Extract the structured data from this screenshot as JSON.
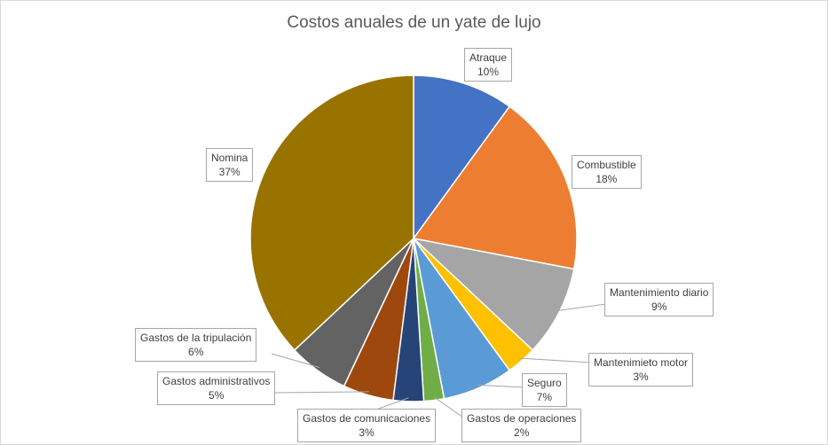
{
  "chart_data": {
    "type": "pie",
    "title": "Costos anuales de un yate de lujo",
    "slices": [
      {
        "name": "Atraque",
        "value": 10,
        "label": "10%",
        "color": "#4472C4"
      },
      {
        "name": "Combustible",
        "value": 18,
        "label": "18%",
        "color": "#ED7D31"
      },
      {
        "name": "Mantenimiento diario",
        "value": 9,
        "label": "9%",
        "color": "#A5A5A5"
      },
      {
        "name": "Mantenimieto motor",
        "value": 3,
        "label": "3%",
        "color": "#FFC000"
      },
      {
        "name": "Seguro",
        "value": 7,
        "label": "7%",
        "color": "#5B9BD5"
      },
      {
        "name": "Gastos de operaciones",
        "value": 2,
        "label": "2%",
        "color": "#70AD47"
      },
      {
        "name": "Gastos de comunicaciones",
        "value": 3,
        "label": "3%",
        "color": "#264478"
      },
      {
        "name": "Gastos administrativos",
        "value": 5,
        "label": "5%",
        "color": "#9E480E"
      },
      {
        "name": "Gastos de la tripulación",
        "value": 6,
        "label": "6%",
        "color": "#636363"
      },
      {
        "name": "Nomina",
        "value": 37,
        "label": "37%",
        "color": "#997300"
      }
    ]
  }
}
